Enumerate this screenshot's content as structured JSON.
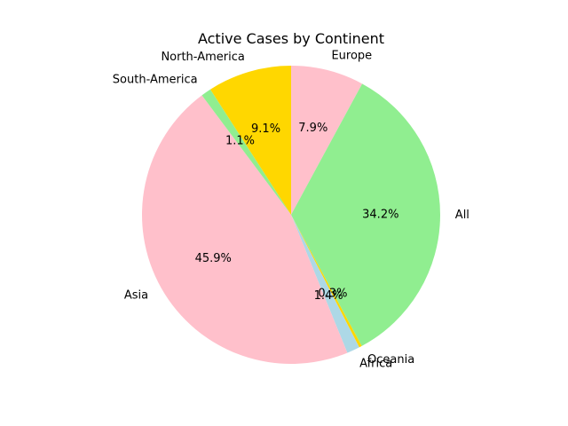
{
  "chart_data": {
    "type": "pie",
    "title": "Active Cases by Continent",
    "start_angle_deg": 90,
    "counterclockwise": true,
    "slices": [
      {
        "label": "Europe",
        "value": 7.9,
        "pct_label": "7.9%",
        "color": "#ffc0cb"
      },
      {
        "label": "All",
        "value": 34.2,
        "pct_label": "34.2%",
        "color": "#90ee90"
      },
      {
        "label": "Oceania",
        "value": 0.3,
        "pct_label": "0.3%",
        "color": "#ffd700"
      },
      {
        "label": "Africa",
        "value": 1.4,
        "pct_label": "1.4%",
        "color": "#add8e6"
      },
      {
        "label": "Asia",
        "value": 45.9,
        "pct_label": "45.9%",
        "color": "#ffc0cb"
      },
      {
        "label": "South-America",
        "value": 1.1,
        "pct_label": "1.1%",
        "color": "#90ee90"
      },
      {
        "label": "North-America",
        "value": 9.1,
        "pct_label": "9.1%",
        "color": "#ffd700"
      }
    ]
  }
}
